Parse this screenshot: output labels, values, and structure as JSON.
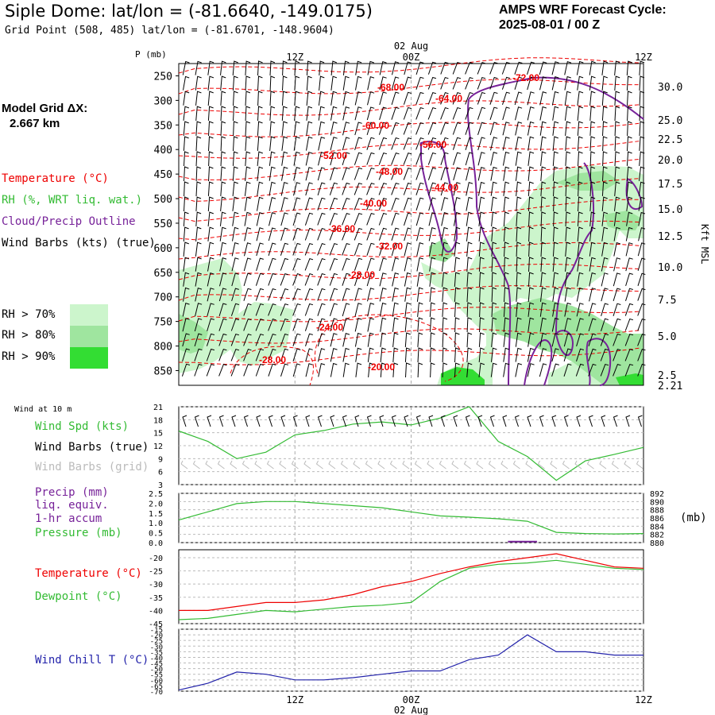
{
  "header": {
    "title": "Siple Dome:  lat/lon = (-81.6640, -149.0175)",
    "grid_point": "Grid Point (508, 485) lat/lon = (-81.6701, -148.9604)",
    "cycle_label": "AMPS WRF Forecast Cycle:",
    "cycle_value": "2025-08-01 / 00  Z"
  },
  "left_legend": {
    "model_grid_1": "Model Grid ΔX:",
    "model_grid_2": "2.667 km",
    "temperature": "Temperature (°C)",
    "rh": "RH (%, WRT liq. wat.)",
    "cloud": "Cloud/Precip Outline",
    "wind_barbs": "Wind Barbs (kts) (true)",
    "rh70": "RH > 70%",
    "rh80": "RH > 80%",
    "rh90": "RH > 90%"
  },
  "colors": {
    "temperature": "#ee0000",
    "rh": "#33bb33",
    "cloud": "#772299",
    "wind": "#000000",
    "grid_barbs": "#bbbbbb",
    "wind_chill": "#2222aa",
    "rh70": "#ccf5cc",
    "rh80": "#9fe59f",
    "rh90": "#33dd33"
  },
  "time_axis": {
    "top_date": "02 Aug",
    "bottom_date": "02 Aug",
    "ticks": [
      "12Z",
      "00Z",
      "12Z"
    ]
  },
  "bottom_panels": {
    "wind10": "Wind at 10 m",
    "wind_spd": "Wind Spd (kts)",
    "wind_barbs_true": "Wind Barbs (true)",
    "wind_barbs_grid": "Wind Barbs (grid)",
    "precip_1": "Precip (mm)",
    "precip_2": "liq. equiv.",
    "precip_3": "1-hr accum",
    "pressure": "Pressure (mb)",
    "mb_unit": "(mb)",
    "temp": "Temperature (°C)",
    "dewpoint": "Dewpoint (°C)",
    "windchill": "Wind Chill T (°C)"
  },
  "chart_data": [
    {
      "type": "contour",
      "name": "sounding",
      "ylabel": "P (mb)",
      "y2label": "Kft MSL",
      "p_ticks": [
        250,
        300,
        350,
        400,
        450,
        500,
        550,
        600,
        650,
        700,
        750,
        800,
        850
      ],
      "kft_ticks": [
        "30.0",
        "25.0",
        "22.5",
        "20.0",
        "17.5",
        "15.0",
        "12.5",
        "10.0",
        "7.5",
        "5.0",
        "2.5",
        "2.21"
      ],
      "temperature_labels": [
        "-68.00",
        "-64.00",
        "-72.00",
        "-60.00",
        "-56.00",
        "-52.00",
        "-48.00",
        "-44.00",
        "-40.00",
        "-36.00",
        "-32.00",
        "-28.00",
        "-24.00",
        "-28.00",
        "-20.00"
      ]
    },
    {
      "type": "line",
      "name": "wind_speed_10m",
      "y_ticks": [
        3,
        6,
        9,
        12,
        15,
        18,
        21
      ],
      "ylim": [
        3,
        21
      ],
      "x_hours": [
        0,
        3,
        6,
        9,
        12,
        15,
        18,
        21,
        24,
        27,
        30,
        33,
        36,
        39,
        42,
        45,
        48
      ],
      "values": [
        15.4,
        13,
        9,
        10.5,
        14.5,
        15.5,
        17,
        17.5,
        16.8,
        18.4,
        21,
        13,
        9.5,
        4,
        8.5,
        10,
        11.6
      ]
    },
    {
      "type": "line",
      "name": "precip_pressure",
      "y_ticks": [
        "0.0",
        "0.5",
        "1.0",
        "1.5",
        "2.0",
        "2.5"
      ],
      "y2_ticks": [
        880,
        882,
        884,
        886,
        888,
        890,
        892
      ],
      "pressure_x_hours": [
        0,
        3,
        6,
        9,
        12,
        15,
        18,
        21,
        24,
        27,
        30,
        33,
        36,
        39,
        42,
        45,
        48
      ],
      "pressure_values": [
        885.5,
        887.5,
        889.5,
        890,
        890,
        889.5,
        889,
        888.5,
        887.5,
        886.5,
        886.2,
        885.8,
        885.2,
        882.5,
        882.2,
        882.1,
        882.2
      ],
      "precip_x_hours": [
        34,
        37
      ],
      "precip_values": [
        0.05,
        0.05
      ]
    },
    {
      "type": "line",
      "name": "temperature_dewpoint",
      "y_ticks": [
        -45,
        -40,
        -35,
        -30,
        -25,
        -20
      ],
      "ylim": [
        -45,
        -17
      ],
      "x_hours": [
        0,
        3,
        6,
        9,
        12,
        15,
        18,
        21,
        24,
        27,
        30,
        33,
        36,
        39,
        42,
        45,
        48
      ],
      "temperature": [
        -40,
        -40,
        -38.5,
        -37,
        -37,
        -36,
        -34,
        -31,
        -29,
        -26,
        -23.5,
        -21.5,
        -20,
        -18.5,
        -21,
        -23.5,
        -24
      ],
      "dewpoint": [
        -43.5,
        -43,
        -41.5,
        -40,
        -40.5,
        -39.5,
        -38.5,
        -38,
        -37,
        -29,
        -24,
        -22.5,
        -22,
        -21,
        -22.5,
        -24,
        -24.5
      ]
    },
    {
      "type": "line",
      "name": "wind_chill",
      "y_ticks": [
        -15,
        -20,
        -25,
        -30,
        -35,
        -40,
        -45,
        -50,
        -55,
        -60,
        -65,
        -70
      ],
      "ylim": [
        -70,
        -15
      ],
      "x_hours": [
        0,
        3,
        6,
        9,
        12,
        15,
        18,
        21,
        24,
        27,
        30,
        33,
        36,
        39,
        42,
        45,
        48
      ],
      "values": [
        -69,
        -63,
        -53,
        -55,
        -60,
        -60,
        -58,
        -55,
        -52,
        -52,
        -42,
        -38,
        -20,
        -35,
        -35,
        -38,
        -38
      ]
    }
  ]
}
